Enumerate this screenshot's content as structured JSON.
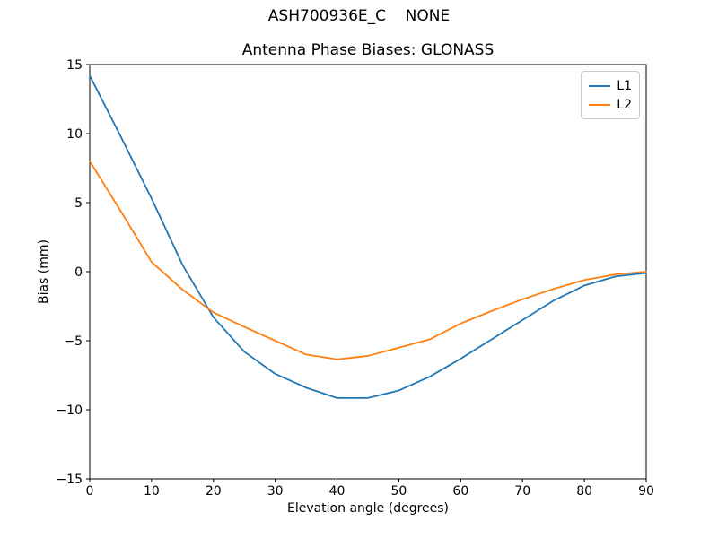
{
  "figure": {
    "suptitle": "ASH700936E_C    NONE",
    "background": "#ffffff",
    "text_color": "#000000",
    "spine_color": "#000000"
  },
  "chart_data": {
    "type": "line",
    "title": "Antenna Phase Biases: GLONASS",
    "xlabel": "Elevation angle (degrees)",
    "ylabel": "Bias (mm)",
    "xlim": [
      0,
      90
    ],
    "ylim": [
      -15,
      15
    ],
    "xticks": [
      0,
      10,
      20,
      30,
      40,
      50,
      60,
      70,
      80,
      90
    ],
    "yticks": [
      15,
      10,
      5,
      0,
      -5,
      -10,
      -15
    ],
    "grid": false,
    "legend_position": "upper right",
    "x": [
      0,
      5,
      10,
      15,
      20,
      25,
      30,
      35,
      40,
      45,
      50,
      55,
      60,
      65,
      70,
      75,
      80,
      85,
      90
    ],
    "series": [
      {
        "name": "L1",
        "color": "#1f77b4",
        "values": [
          14.2,
          9.8,
          5.3,
          0.5,
          -3.3,
          -5.8,
          -7.4,
          -8.4,
          -9.15,
          -9.15,
          -8.6,
          -7.6,
          -6.3,
          -4.9,
          -3.5,
          -2.1,
          -1.0,
          -0.35,
          -0.1
        ]
      },
      {
        "name": "L2",
        "color": "#ff7f0e",
        "values": [
          8.0,
          4.4,
          0.7,
          -1.3,
          -2.95,
          -4.0,
          -5.0,
          -6.0,
          -6.35,
          -6.1,
          -5.5,
          -4.9,
          -3.75,
          -2.85,
          -2.0,
          -1.25,
          -0.6,
          -0.2,
          0.0
        ]
      }
    ]
  }
}
